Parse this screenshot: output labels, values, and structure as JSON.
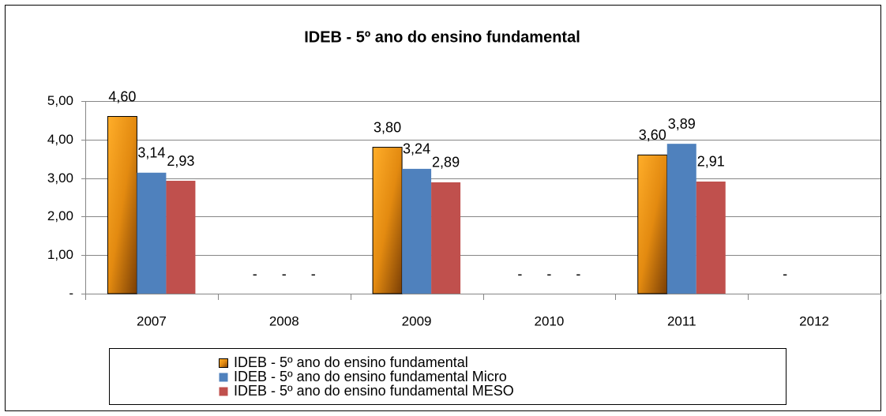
{
  "chart_data": {
    "type": "bar",
    "title": "IDEB - 5º ano do ensino fundamental",
    "categories": [
      "2007",
      "2008",
      "2009",
      "2010",
      "2011",
      "2012"
    ],
    "series": [
      {
        "name": "IDEB - 5º ano do ensino fundamental",
        "color": "#f5a01e",
        "values": [
          4.6,
          0,
          3.8,
          0,
          3.6,
          0
        ],
        "value_labels": [
          "4,60",
          "-",
          "3,80",
          "-",
          "3,60",
          "-"
        ]
      },
      {
        "name": "IDEB - 5º ano do ensino fundamental Micro",
        "color": "#4f81bd",
        "values": [
          3.14,
          0,
          3.24,
          0,
          3.89,
          null
        ],
        "value_labels": [
          "3,14",
          "-",
          "3,24",
          "-",
          "3,89",
          null
        ]
      },
      {
        "name": "IDEB - 5º ano do ensino fundamental MESO",
        "color": "#c0504d",
        "values": [
          2.93,
          0,
          2.89,
          0,
          2.91,
          null
        ],
        "value_labels": [
          "2,93",
          "-",
          "2,89",
          "-",
          "2,91",
          null
        ]
      }
    ],
    "ylim": [
      0,
      5
    ],
    "yticks": [
      {
        "value": 0,
        "label": "-"
      },
      {
        "value": 1,
        "label": "1,00"
      },
      {
        "value": 2,
        "label": "2,00"
      },
      {
        "value": 3,
        "label": "3,00"
      },
      {
        "value": 4,
        "label": "4,00"
      },
      {
        "value": 5,
        "label": "5,00"
      }
    ],
    "grid": true
  }
}
